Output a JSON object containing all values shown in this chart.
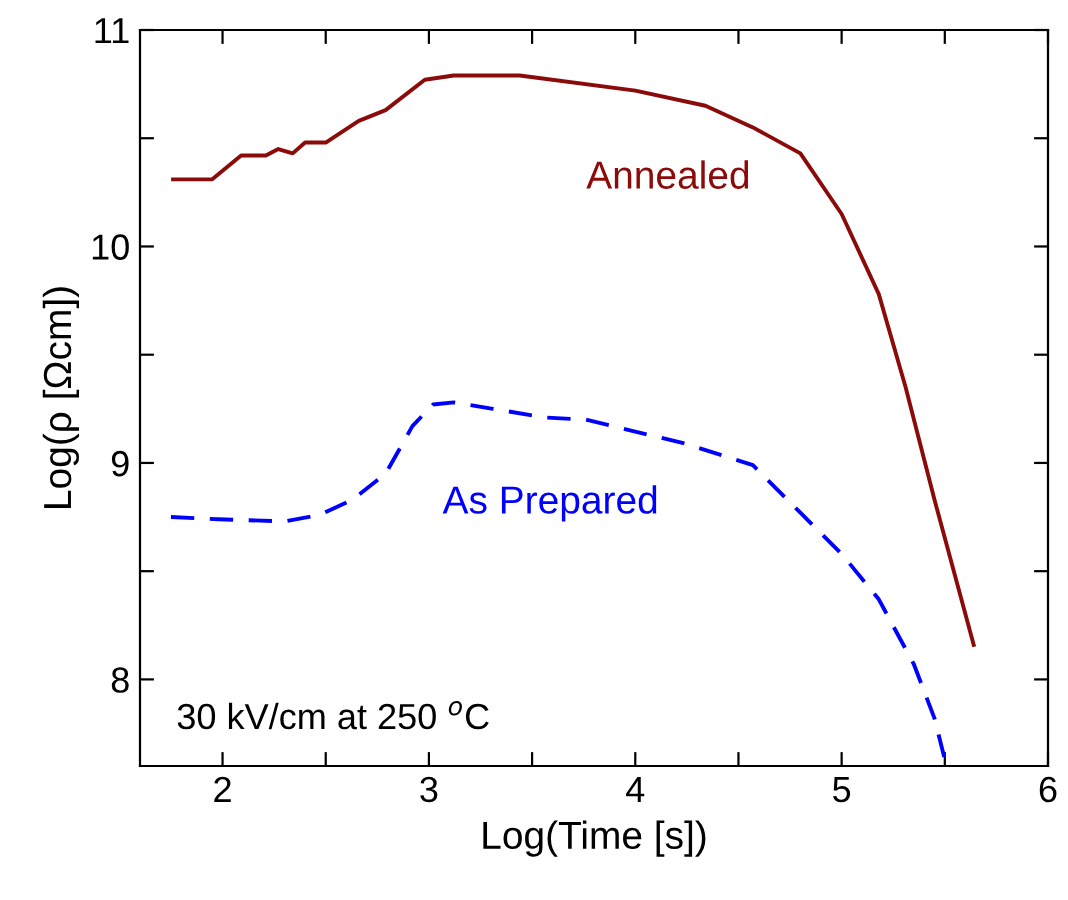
{
  "chart_data": {
    "type": "line",
    "xlabel": "Log(Time [s])",
    "ylabel": "Log(ρ [Ωcm])",
    "xlim": [
      1.6,
      6
    ],
    "ylim": [
      7.6,
      11
    ],
    "xticks": [
      2,
      {
        "value": 2.5,
        "label": null
      },
      3,
      {
        "value": 3.5,
        "label": null
      },
      4,
      {
        "value": 4.5,
        "label": null
      },
      5,
      {
        "value": 5.5,
        "label": null
      },
      6
    ],
    "yticks": [
      8,
      {
        "value": 8.5,
        "label": null
      },
      9,
      {
        "value": 9.5,
        "label": null
      },
      10,
      {
        "value": 10.5,
        "label": null
      },
      11
    ],
    "grid": false,
    "legend": false,
    "marker": "none",
    "annotations": [
      "30 kV/cm at 250 $^{o}$C"
    ],
    "series": [
      {
        "name": "Annealed",
        "color": "#8b0a0a",
        "line_style": "solid",
        "x": [
          1.76,
          1.95,
          2.09,
          2.21,
          2.27,
          2.34,
          2.4,
          2.5,
          2.66,
          2.79,
          2.98,
          3.12,
          3.44,
          4.0,
          4.34,
          4.57,
          4.8,
          5.0,
          5.18,
          5.31,
          5.45,
          5.64
        ],
        "values": [
          10.31,
          10.31,
          10.42,
          10.42,
          10.45,
          10.43,
          10.48,
          10.48,
          10.58,
          10.63,
          10.77,
          10.79,
          10.79,
          10.72,
          10.65,
          10.55,
          10.43,
          10.15,
          9.78,
          9.35,
          8.83,
          8.16
        ]
      },
      {
        "name": "As Prepared",
        "color": "#0000ff",
        "line_style": "dashed",
        "x": [
          1.75,
          1.98,
          2.3,
          2.47,
          2.63,
          2.79,
          2.92,
          3.02,
          3.12,
          3.31,
          3.56,
          3.76,
          4.24,
          4.57,
          4.8,
          5.0,
          5.18,
          5.35,
          5.45,
          5.5
        ],
        "values": [
          8.75,
          8.74,
          8.73,
          8.76,
          8.83,
          8.95,
          9.17,
          9.27,
          9.28,
          9.25,
          9.21,
          9.2,
          9.09,
          8.99,
          8.77,
          8.58,
          8.37,
          8.07,
          7.82,
          7.63
        ]
      }
    ]
  }
}
